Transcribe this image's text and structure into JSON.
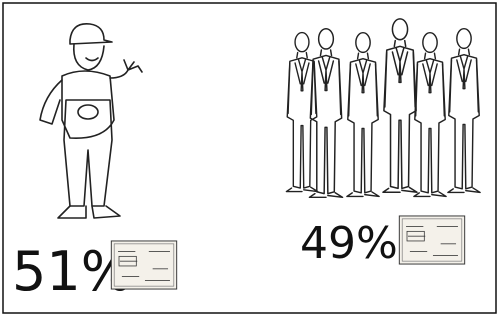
{
  "left": {
    "share": "51%"
  },
  "right": {
    "share": "49%"
  }
}
